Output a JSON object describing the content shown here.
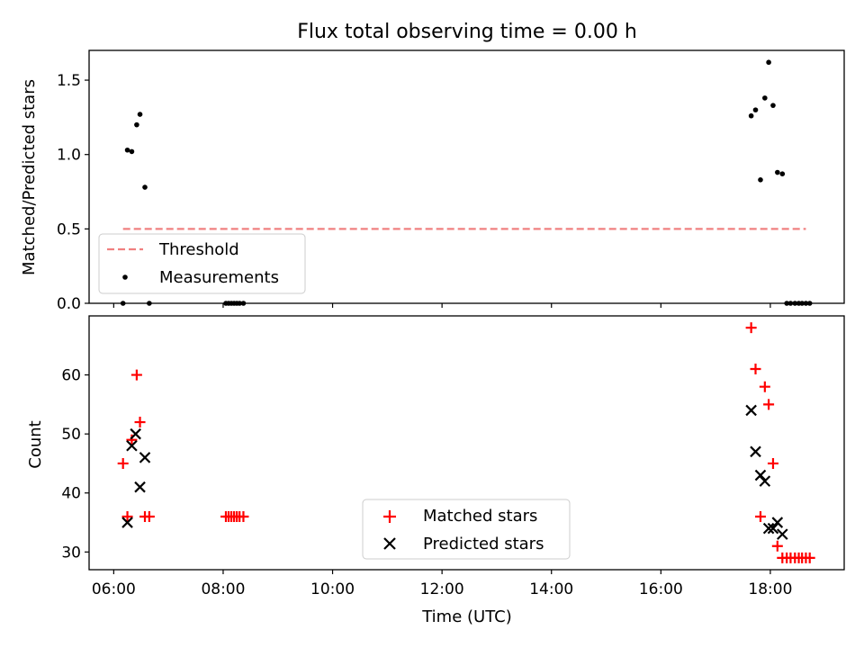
{
  "figure_title": "Flux total observing time = 0.00 h",
  "colors": {
    "threshold": "#f08080",
    "measurements": "#000000",
    "matched": "#ff0000",
    "predicted": "#000000",
    "axes": "#000000"
  },
  "chart_data": [
    {
      "type": "scatter",
      "title": "Flux total observing time = 0.00 h",
      "xlabel": "",
      "ylabel": "Matched/Predicted stars",
      "x_unit": "time_of_day_hours",
      "xlim": [
        5.55,
        19.35
      ],
      "ylim": [
        0.0,
        1.7
      ],
      "x_ticks": [
        6,
        8,
        10,
        12,
        14,
        16,
        18
      ],
      "y_ticks": [
        0.0,
        0.5,
        1.0,
        1.5
      ],
      "y_tick_labels": [
        "0.0",
        "0.5",
        "1.0",
        "1.5"
      ],
      "grid": false,
      "legend_position": "lower-left",
      "series": [
        {
          "name": "Threshold",
          "kind": "line",
          "style": "dashed",
          "x": [
            6.17,
            18.65
          ],
          "y": [
            0.5,
            0.5
          ]
        },
        {
          "name": "Measurements",
          "kind": "points",
          "marker": "dot",
          "x": [
            6.17,
            6.25,
            6.33,
            6.42,
            6.48,
            6.57,
            6.65,
            8.05,
            8.1,
            8.15,
            8.2,
            8.25,
            8.3,
            8.37,
            17.65,
            17.73,
            17.82,
            17.9,
            17.97,
            18.05,
            18.13,
            18.22,
            18.3,
            18.37,
            18.45,
            18.52,
            18.58,
            18.65,
            18.72
          ],
          "y": [
            0.0,
            1.03,
            1.02,
            1.2,
            1.27,
            0.78,
            0.0,
            0.0,
            0.0,
            0.0,
            0.0,
            0.0,
            0.0,
            0.0,
            1.26,
            1.3,
            0.83,
            1.38,
            1.62,
            1.33,
            0.88,
            0.87,
            0.0,
            0.0,
            0.0,
            0.0,
            0.0,
            0.0,
            0.0
          ]
        }
      ]
    },
    {
      "type": "scatter",
      "title": "",
      "xlabel": "Time (UTC)",
      "ylabel": "Count",
      "x_unit": "time_of_day_hours",
      "xlim": [
        5.55,
        19.35
      ],
      "ylim": [
        27,
        70
      ],
      "x_ticks": [
        6,
        8,
        10,
        12,
        14,
        16,
        18
      ],
      "x_tick_labels": [
        "06:00",
        "08:00",
        "10:00",
        "12:00",
        "14:00",
        "16:00",
        "18:00"
      ],
      "y_ticks": [
        30,
        40,
        50,
        60
      ],
      "y_tick_labels": [
        "30",
        "40",
        "50",
        "60"
      ],
      "grid": false,
      "legend_position": "lower-center",
      "series": [
        {
          "name": "Matched stars",
          "marker": "plus",
          "x": [
            6.17,
            6.25,
            6.33,
            6.42,
            6.48,
            6.57,
            6.65,
            8.05,
            8.1,
            8.15,
            8.2,
            8.25,
            8.3,
            8.37,
            17.65,
            17.73,
            17.82,
            17.9,
            17.97,
            18.05,
            18.13,
            18.22,
            18.3,
            18.37,
            18.45,
            18.52,
            18.58,
            18.65,
            18.72
          ],
          "y": [
            45,
            36,
            49,
            60,
            52,
            36,
            36,
            36,
            36,
            36,
            36,
            36,
            36,
            36,
            68,
            61,
            36,
            58,
            55,
            45,
            31,
            29,
            29,
            29,
            29,
            29,
            29,
            29,
            29
          ]
        },
        {
          "name": "Predicted stars",
          "marker": "x",
          "x": [
            6.25,
            6.33,
            6.4,
            6.48,
            6.57,
            17.65,
            17.73,
            17.82,
            17.9,
            17.97,
            18.05,
            18.13,
            18.22
          ],
          "y": [
            35,
            48,
            50,
            41,
            46,
            54,
            47,
            43,
            42,
            34,
            34,
            35,
            33
          ]
        }
      ]
    }
  ]
}
